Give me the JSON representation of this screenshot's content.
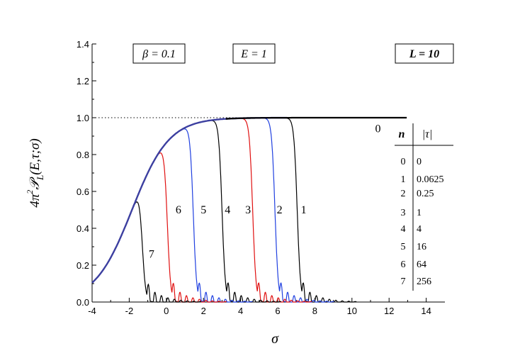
{
  "chart_data": {
    "type": "line",
    "title": "",
    "xlabel": "σ",
    "ylabel_prefix": "4π",
    "ylabel_sup": "2",
    "ylabel_symbol": "𝒫",
    "ylabel_sub": "L",
    "ylabel_args": "(E,τ;σ)",
    "xlim": [
      -4,
      15
    ],
    "ylim": [
      0,
      1.4
    ],
    "xticks": [
      "-4",
      "-2",
      "0",
      "2",
      "4",
      "6",
      "8",
      "10",
      "12",
      "14"
    ],
    "yticks": [
      "0.0",
      "0.2",
      "0.4",
      "0.6",
      "0.8",
      "1.0",
      "1.2",
      "1.4"
    ],
    "reference_line": {
      "y": 1.0,
      "style": "dotted"
    },
    "envelope_color": "#3c3fa0",
    "series": [
      {
        "name": "0",
        "color": "#000000",
        "drop_center": null,
        "end_x": 13
      },
      {
        "name": "1",
        "color": "#000000",
        "drop_center": 7.05
      },
      {
        "name": "2",
        "color": "#2040e0",
        "drop_center": 5.85
      },
      {
        "name": "3",
        "color": "#e01010",
        "drop_center": 4.65
      },
      {
        "name": "4",
        "color": "#000000",
        "drop_center": 3.0
      },
      {
        "name": "5",
        "color": "#2040e0",
        "drop_center": 1.45
      },
      {
        "name": "6",
        "color": "#e01010",
        "drop_center": 0.05
      },
      {
        "name": "7",
        "color": "#000000",
        "drop_center": -1.3
      }
    ],
    "curve_labels": [
      {
        "text": "0",
        "x": 11.4,
        "y": 0.94
      },
      {
        "text": "1",
        "x": 7.4,
        "y": 0.5
      },
      {
        "text": "2",
        "x": 6.1,
        "y": 0.5
      },
      {
        "text": "3",
        "x": 4.4,
        "y": 0.5
      },
      {
        "text": "4",
        "x": 3.3,
        "y": 0.5
      },
      {
        "text": "5",
        "x": 2.0,
        "y": 0.5
      },
      {
        "text": "6",
        "x": 0.65,
        "y": 0.5
      },
      {
        "text": "7",
        "x": -0.8,
        "y": 0.26
      }
    ],
    "boxes": {
      "beta": {
        "label": "β = 0.1"
      },
      "energy": {
        "label": "E = 1"
      },
      "length": {
        "label": "L = 10"
      }
    },
    "legend_table": {
      "headers": [
        "n",
        "|τ|"
      ],
      "rows": [
        [
          "0",
          "0"
        ],
        [
          "1",
          "0.0625"
        ],
        [
          "2",
          "0.25"
        ],
        [
          "3",
          "1"
        ],
        [
          "4",
          "4"
        ],
        [
          "5",
          "16"
        ],
        [
          "6",
          "64"
        ],
        [
          "7",
          "256"
        ]
      ]
    }
  }
}
